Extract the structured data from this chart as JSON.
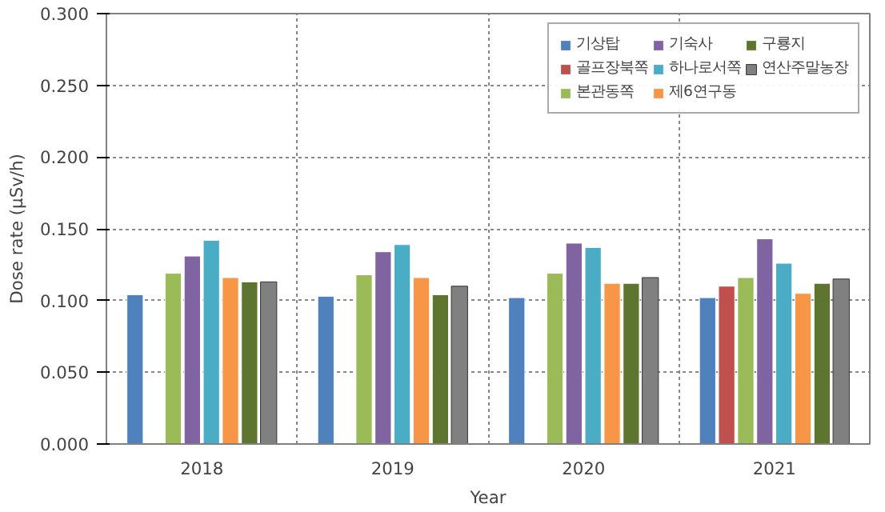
{
  "chart_data": {
    "type": "bar",
    "xlabel": "Year",
    "ylabel": "Dose rate (μSv/h)",
    "categories": [
      "2018",
      "2019",
      "2020",
      "2021"
    ],
    "ylim": [
      0,
      0.3
    ],
    "yticks": [
      {
        "value": 0,
        "label": "0.000"
      },
      {
        "value": 0.05,
        "label": "0.050"
      },
      {
        "value": 0.1,
        "label": "0.100"
      },
      {
        "value": 0.15,
        "label": "0.150"
      },
      {
        "value": 0.2,
        "label": "0.200"
      },
      {
        "value": 0.25,
        "label": "0.250"
      },
      {
        "value": 0.3,
        "label": "0.300"
      }
    ],
    "grid": true,
    "legend": "top right",
    "series": [
      {
        "name": "기상탑",
        "color": "#4f81bd",
        "values": [
          0.104,
          0.103,
          0.102,
          0.102
        ]
      },
      {
        "name": "골프장북쪽",
        "color": "#c0504d",
        "values": [
          null,
          null,
          null,
          0.11
        ]
      },
      {
        "name": "본관동쪽",
        "color": "#9bbb59",
        "values": [
          0.119,
          0.118,
          0.119,
          0.116
        ]
      },
      {
        "name": "기숙사",
        "color": "#8064a2",
        "values": [
          0.131,
          0.134,
          0.14,
          0.143
        ]
      },
      {
        "name": "하나로서쪽",
        "color": "#4bacc6",
        "values": [
          0.142,
          0.139,
          0.137,
          0.126
        ]
      },
      {
        "name": "제6연구동",
        "color": "#f79646",
        "values": [
          0.116,
          0.116,
          0.112,
          0.105
        ]
      },
      {
        "name": "구룡지",
        "color": "#5e7530",
        "values": [
          0.113,
          0.104,
          0.112,
          0.112
        ]
      },
      {
        "name": "연산주말농장",
        "color": "#808080",
        "values": [
          0.113,
          0.11,
          0.116,
          0.115
        ]
      }
    ]
  }
}
